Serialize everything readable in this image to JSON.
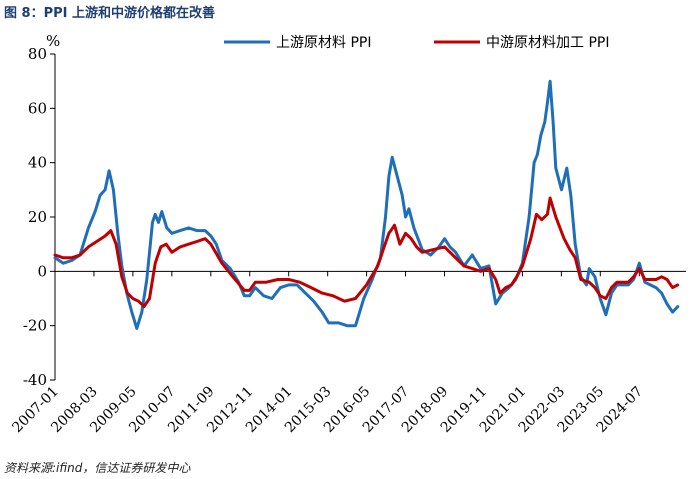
{
  "figure": {
    "title": "图 8：PPI 上游和中游价格都在改善",
    "source": "资料来源:ifind，信达证券研发中心"
  },
  "colors": {
    "upstream": "#1f6fb8",
    "midstream": "#c00000",
    "axis": "#000000"
  },
  "chart_data": {
    "type": "line",
    "title": "PPI 上游和中游价格都在改善",
    "ylabel": "%",
    "xlabel": "",
    "ylim": [
      -40,
      80
    ],
    "yticks": [
      -40,
      -20,
      0,
      20,
      40,
      60,
      80
    ],
    "xlim": [
      2007.0,
      2025.9
    ],
    "xticks": [
      {
        "label": "2007-01",
        "x": 2007.0
      },
      {
        "label": "2008-03",
        "x": 2008.167
      },
      {
        "label": "2009-05",
        "x": 2009.333
      },
      {
        "label": "2010-07",
        "x": 2010.5
      },
      {
        "label": "2011-09",
        "x": 2011.667
      },
      {
        "label": "2012-11",
        "x": 2012.833
      },
      {
        "label": "2014-01",
        "x": 2014.0
      },
      {
        "label": "2015-03",
        "x": 2015.167
      },
      {
        "label": "2016-05",
        "x": 2016.333
      },
      {
        "label": "2017-07",
        "x": 2017.5
      },
      {
        "label": "2018-09",
        "x": 2018.667
      },
      {
        "label": "2019-11",
        "x": 2019.833
      },
      {
        "label": "2021-01",
        "x": 2021.0
      },
      {
        "label": "2022-03",
        "x": 2022.167
      },
      {
        "label": "2023-05",
        "x": 2023.333
      },
      {
        "label": "2024-07",
        "x": 2024.5
      }
    ],
    "legend_position": "top-right",
    "series": [
      {
        "name": "上游原材料 PPI",
        "color": "#1f6fb8",
        "points": [
          [
            2007.0,
            5
          ],
          [
            2007.25,
            3
          ],
          [
            2007.5,
            4
          ],
          [
            2007.75,
            6
          ],
          [
            2008.0,
            16
          ],
          [
            2008.2,
            22
          ],
          [
            2008.35,
            28
          ],
          [
            2008.5,
            30
          ],
          [
            2008.62,
            37
          ],
          [
            2008.75,
            30
          ],
          [
            2008.88,
            14
          ],
          [
            2009.0,
            2
          ],
          [
            2009.15,
            -8
          ],
          [
            2009.3,
            -15
          ],
          [
            2009.45,
            -21
          ],
          [
            2009.6,
            -15
          ],
          [
            2009.75,
            -3
          ],
          [
            2009.92,
            18
          ],
          [
            2010.0,
            21
          ],
          [
            2010.1,
            18
          ],
          [
            2010.2,
            22
          ],
          [
            2010.35,
            16
          ],
          [
            2010.5,
            14
          ],
          [
            2010.75,
            15
          ],
          [
            2011.0,
            16
          ],
          [
            2011.25,
            15
          ],
          [
            2011.5,
            15
          ],
          [
            2011.67,
            13
          ],
          [
            2011.83,
            10
          ],
          [
            2012.0,
            4
          ],
          [
            2012.25,
            1
          ],
          [
            2012.5,
            -4
          ],
          [
            2012.67,
            -9
          ],
          [
            2012.83,
            -9
          ],
          [
            2013.0,
            -6
          ],
          [
            2013.25,
            -9
          ],
          [
            2013.5,
            -10
          ],
          [
            2013.75,
            -6
          ],
          [
            2014.0,
            -5
          ],
          [
            2014.25,
            -5
          ],
          [
            2014.5,
            -8
          ],
          [
            2014.75,
            -11
          ],
          [
            2015.0,
            -15
          ],
          [
            2015.2,
            -19
          ],
          [
            2015.5,
            -19
          ],
          [
            2015.75,
            -20
          ],
          [
            2016.0,
            -20
          ],
          [
            2016.25,
            -10
          ],
          [
            2016.5,
            -3
          ],
          [
            2016.75,
            5
          ],
          [
            2016.9,
            20
          ],
          [
            2017.0,
            35
          ],
          [
            2017.1,
            42
          ],
          [
            2017.25,
            35
          ],
          [
            2017.4,
            28
          ],
          [
            2017.5,
            20
          ],
          [
            2017.6,
            23
          ],
          [
            2017.75,
            16
          ],
          [
            2018.0,
            8
          ],
          [
            2018.25,
            6
          ],
          [
            2018.5,
            9
          ],
          [
            2018.67,
            12
          ],
          [
            2018.83,
            9
          ],
          [
            2019.0,
            7
          ],
          [
            2019.25,
            2
          ],
          [
            2019.5,
            6
          ],
          [
            2019.75,
            1
          ],
          [
            2020.0,
            2
          ],
          [
            2020.2,
            -12
          ],
          [
            2020.4,
            -8
          ],
          [
            2020.6,
            -6
          ],
          [
            2020.8,
            -3
          ],
          [
            2021.0,
            3
          ],
          [
            2021.2,
            20
          ],
          [
            2021.35,
            40
          ],
          [
            2021.45,
            43
          ],
          [
            2021.55,
            50
          ],
          [
            2021.67,
            55
          ],
          [
            2021.75,
            62
          ],
          [
            2021.83,
            70
          ],
          [
            2021.92,
            55
          ],
          [
            2022.0,
            38
          ],
          [
            2022.17,
            30
          ],
          [
            2022.33,
            38
          ],
          [
            2022.45,
            28
          ],
          [
            2022.58,
            10
          ],
          [
            2022.75,
            -2
          ],
          [
            2022.92,
            -5
          ],
          [
            2023.0,
            1
          ],
          [
            2023.17,
            -2
          ],
          [
            2023.33,
            -10
          ],
          [
            2023.5,
            -16
          ],
          [
            2023.67,
            -8
          ],
          [
            2023.83,
            -5
          ],
          [
            2024.0,
            -5
          ],
          [
            2024.17,
            -5
          ],
          [
            2024.33,
            -3
          ],
          [
            2024.5,
            3
          ],
          [
            2024.67,
            -4
          ],
          [
            2024.83,
            -5
          ],
          [
            2025.0,
            -6
          ],
          [
            2025.17,
            -8
          ],
          [
            2025.33,
            -12
          ],
          [
            2025.5,
            -15
          ],
          [
            2025.65,
            -13
          ]
        ]
      },
      {
        "name": "中游原材料加工 PPI",
        "color": "#c00000",
        "points": [
          [
            2007.0,
            6
          ],
          [
            2007.25,
            5
          ],
          [
            2007.5,
            5
          ],
          [
            2007.75,
            6
          ],
          [
            2008.0,
            9
          ],
          [
            2008.25,
            11
          ],
          [
            2008.5,
            13
          ],
          [
            2008.67,
            15
          ],
          [
            2008.83,
            10
          ],
          [
            2009.0,
            -2
          ],
          [
            2009.17,
            -8
          ],
          [
            2009.33,
            -10
          ],
          [
            2009.5,
            -11
          ],
          [
            2009.67,
            -13
          ],
          [
            2009.83,
            -10
          ],
          [
            2010.0,
            3
          ],
          [
            2010.17,
            9
          ],
          [
            2010.33,
            10
          ],
          [
            2010.5,
            7
          ],
          [
            2010.75,
            9
          ],
          [
            2011.0,
            10
          ],
          [
            2011.25,
            11
          ],
          [
            2011.5,
            12
          ],
          [
            2011.67,
            10
          ],
          [
            2012.0,
            3
          ],
          [
            2012.33,
            -2
          ],
          [
            2012.67,
            -7
          ],
          [
            2012.83,
            -7
          ],
          [
            2013.0,
            -4
          ],
          [
            2013.33,
            -4
          ],
          [
            2013.67,
            -3
          ],
          [
            2014.0,
            -3
          ],
          [
            2014.33,
            -4
          ],
          [
            2014.67,
            -6
          ],
          [
            2015.0,
            -8
          ],
          [
            2015.33,
            -9
          ],
          [
            2015.67,
            -11
          ],
          [
            2016.0,
            -10
          ],
          [
            2016.33,
            -5
          ],
          [
            2016.67,
            2
          ],
          [
            2016.83,
            8
          ],
          [
            2017.0,
            14
          ],
          [
            2017.17,
            17
          ],
          [
            2017.33,
            10
          ],
          [
            2017.5,
            14
          ],
          [
            2017.67,
            12
          ],
          [
            2017.83,
            9
          ],
          [
            2018.0,
            7
          ],
          [
            2018.33,
            8
          ],
          [
            2018.67,
            9
          ],
          [
            2018.83,
            7
          ],
          [
            2019.0,
            5
          ],
          [
            2019.25,
            2
          ],
          [
            2019.5,
            1
          ],
          [
            2019.75,
            0
          ],
          [
            2020.0,
            1
          ],
          [
            2020.2,
            -3
          ],
          [
            2020.33,
            -8
          ],
          [
            2020.5,
            -6
          ],
          [
            2020.67,
            -5
          ],
          [
            2020.83,
            -2
          ],
          [
            2021.0,
            2
          ],
          [
            2021.25,
            12
          ],
          [
            2021.42,
            21
          ],
          [
            2021.58,
            19
          ],
          [
            2021.75,
            21
          ],
          [
            2021.83,
            27
          ],
          [
            2022.0,
            20
          ],
          [
            2022.25,
            12
          ],
          [
            2022.42,
            8
          ],
          [
            2022.58,
            5
          ],
          [
            2022.75,
            -3
          ],
          [
            2023.0,
            -4
          ],
          [
            2023.17,
            -6
          ],
          [
            2023.33,
            -9
          ],
          [
            2023.5,
            -10
          ],
          [
            2023.67,
            -6
          ],
          [
            2023.83,
            -4
          ],
          [
            2024.0,
            -4
          ],
          [
            2024.17,
            -4
          ],
          [
            2024.33,
            -2
          ],
          [
            2024.5,
            1
          ],
          [
            2024.67,
            -3
          ],
          [
            2024.83,
            -3
          ],
          [
            2025.0,
            -3
          ],
          [
            2025.17,
            -2
          ],
          [
            2025.33,
            -3
          ],
          [
            2025.5,
            -6
          ],
          [
            2025.65,
            -5
          ]
        ]
      }
    ]
  }
}
